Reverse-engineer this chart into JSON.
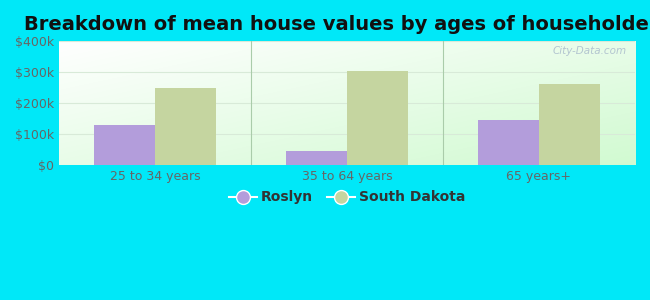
{
  "title": "Breakdown of mean house values by ages of householders",
  "categories": [
    "25 to 34 years",
    "35 to 64 years",
    "65 years+"
  ],
  "roslyn_values": [
    130000,
    45000,
    145000
  ],
  "sd_values": [
    250000,
    305000,
    262000
  ],
  "roslyn_color": "#b39ddb",
  "sd_color": "#c5d5a0",
  "ylim": [
    0,
    400000
  ],
  "yticks": [
    0,
    100000,
    200000,
    300000,
    400000
  ],
  "ytick_labels": [
    "$0",
    "$100k",
    "$200k",
    "$300k",
    "$400k"
  ],
  "bar_width": 0.32,
  "background_outer": "#00e8f8",
  "grid_color": "#d8ead8",
  "legend_roslyn": "Roslyn",
  "legend_sd": "South Dakota",
  "title_fontsize": 14,
  "tick_fontsize": 9,
  "legend_fontsize": 10,
  "watermark": "City-Data.com"
}
